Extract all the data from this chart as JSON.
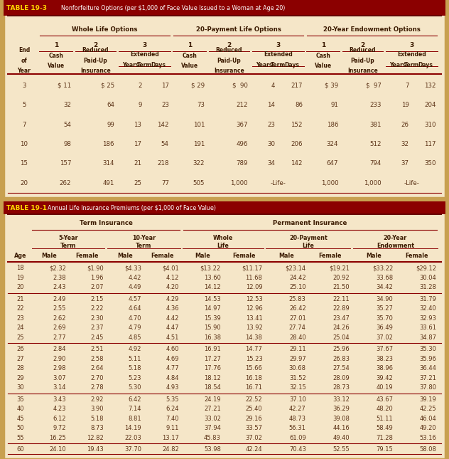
{
  "bg_color": "#F5E6C8",
  "header_bg": "#8B0000",
  "header_text_color": "#FFFFFF",
  "line_color": "#8B0000",
  "text_color": "#5C3317",
  "bold_color": "#3B1A00",
  "outer_border_color": "#C8A050",
  "gold_label_color": "#FFD700",
  "table1_label": "TABLE 19-3",
  "table1_title": "Nonforfeiture Options (per $1,000 of Face Value Issued to a Woman at Age 20)",
  "table1_group_headers": [
    "Whole Life Options",
    "20-Payment Life Options",
    "20-Year Endowment Options"
  ],
  "table1_data": [
    [
      "3",
      "$ 11",
      "$ 25",
      "2",
      "17",
      "$ 29",
      "$  90",
      "4",
      "217",
      "$ 39",
      "$  97",
      "7",
      "132"
    ],
    [
      "5",
      "32",
      "64",
      "9",
      "23",
      "73",
      "212",
      "14",
      "86",
      "91",
      "233",
      "19",
      "204"
    ],
    [
      "7",
      "54",
      "99",
      "13",
      "142",
      "101",
      "367",
      "23",
      "152",
      "186",
      "381",
      "26",
      "310"
    ],
    [
      "10",
      "98",
      "186",
      "17",
      "54",
      "191",
      "496",
      "30",
      "206",
      "324",
      "512",
      "32",
      "117"
    ],
    [
      "15",
      "157",
      "314",
      "21",
      "218",
      "322",
      "789",
      "34",
      "142",
      "647",
      "794",
      "37",
      "350"
    ],
    [
      "20",
      "262",
      "491",
      "25",
      "77",
      "505",
      "1,000",
      "-Life-",
      "",
      "1,000",
      "1,000",
      "-Life-",
      ""
    ]
  ],
  "table2_label": "TABLE 19-1",
  "table2_title": "Annual Life Insurance Premiums (per $1,000 of Face Value)",
  "table2_group1": "Term Insurance",
  "table2_group2": "Permanent Insurance",
  "table2_subgroups": [
    "5-Year\nTerm",
    "10-Year\nTerm",
    "Whole\nLife",
    "20-Payment\nLife",
    "20-Year\nEndowment"
  ],
  "table2_data_g1": [
    [
      "18",
      "$2.32",
      "$1.90",
      "$4.33",
      "$4.01",
      "$13.22",
      "$11.17",
      "$23.14",
      "$19.21",
      "$33.22",
      "$29.12"
    ],
    [
      "19",
      "2.38",
      "1.96",
      "4.42",
      "4.12",
      "13.60",
      "11.68",
      "24.42",
      "20.92",
      "33.68",
      "30.04"
    ],
    [
      "20",
      "2.43",
      "2.07",
      "4.49",
      "4.20",
      "14.12",
      "12.09",
      "25.10",
      "21.50",
      "34.42",
      "31.28"
    ]
  ],
  "table2_data_g2": [
    [
      "21",
      "2.49",
      "2.15",
      "4.57",
      "4.29",
      "14.53",
      "12.53",
      "25.83",
      "22.11",
      "34.90",
      "31.79"
    ],
    [
      "22",
      "2.55",
      "2.22",
      "4.64",
      "4.36",
      "14.97",
      "12.96",
      "26.42",
      "22.89",
      "35.27",
      "32.40"
    ],
    [
      "23",
      "2.62",
      "2.30",
      "4.70",
      "4.42",
      "15.39",
      "13.41",
      "27.01",
      "23.47",
      "35.70",
      "32.93"
    ],
    [
      "24",
      "2.69",
      "2.37",
      "4.79",
      "4.47",
      "15.90",
      "13.92",
      "27.74",
      "24.26",
      "36.49",
      "33.61"
    ],
    [
      "25",
      "2.77",
      "2.45",
      "4.85",
      "4.51",
      "16.38",
      "14.38",
      "28.40",
      "25.04",
      "37.02",
      "34.87"
    ]
  ],
  "table2_data_g3": [
    [
      "26",
      "2.84",
      "2.51",
      "4.92",
      "4.60",
      "16.91",
      "14.77",
      "29.11",
      "25.96",
      "37.67",
      "35.30"
    ],
    [
      "27",
      "2.90",
      "2.58",
      "5.11",
      "4.69",
      "17.27",
      "15.23",
      "29.97",
      "26.83",
      "38.23",
      "35.96"
    ],
    [
      "28",
      "2.98",
      "2.64",
      "5.18",
      "4.77",
      "17.76",
      "15.66",
      "30.68",
      "27.54",
      "38.96",
      "36.44"
    ],
    [
      "29",
      "3.07",
      "2.70",
      "5.23",
      "4.84",
      "18.12",
      "16.18",
      "31.52",
      "28.09",
      "39.42",
      "37.21"
    ],
    [
      "30",
      "3.14",
      "2.78",
      "5.30",
      "4.93",
      "18.54",
      "16.71",
      "32.15",
      "28.73",
      "40.19",
      "37.80"
    ]
  ],
  "table2_data_g4": [
    [
      "35",
      "3.43",
      "2.92",
      "6.42",
      "5.35",
      "24.19",
      "22.52",
      "37.10",
      "33.12",
      "43.67",
      "39.19"
    ],
    [
      "40",
      "4.23",
      "3.90",
      "7.14",
      "6.24",
      "27.21",
      "25.40",
      "42.27",
      "36.29",
      "48.20",
      "42.25"
    ],
    [
      "45",
      "6.12",
      "5.18",
      "8.81",
      "7.40",
      "33.02",
      "29.16",
      "48.73",
      "39.08",
      "51.11",
      "46.04"
    ],
    [
      "50",
      "9.72",
      "8.73",
      "14.19",
      "9.11",
      "37.94",
      "33.57",
      "56.31",
      "44.16",
      "58.49",
      "49.20"
    ],
    [
      "55",
      "16.25",
      "12.82",
      "22.03",
      "13.17",
      "45.83",
      "37.02",
      "61.09",
      "49.40",
      "71.28",
      "53.16"
    ]
  ],
  "table2_data_g5": [
    [
      "60",
      "24.10",
      "19.43",
      "37.70",
      "24.82",
      "53.98",
      "42.24",
      "70.43",
      "52.55",
      "79.15",
      "58.08"
    ]
  ]
}
